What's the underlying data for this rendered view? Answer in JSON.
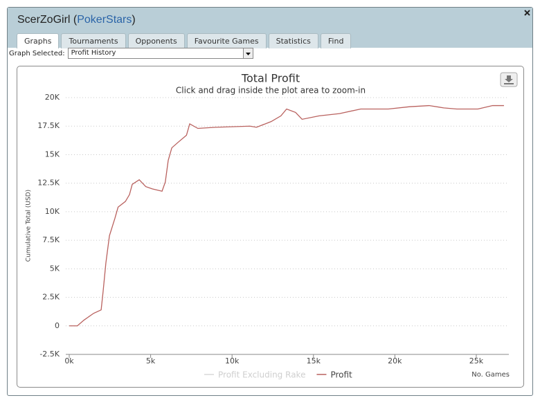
{
  "header": {
    "title_prefix": "ScerZoGirl (",
    "site": "PokerStars",
    "title_suffix": ")"
  },
  "tabs": [
    "Graphs",
    "Tournaments",
    "Opponents",
    "Favourite Games",
    "Statistics",
    "Find"
  ],
  "graph_select": {
    "label": "Graph Selected:",
    "value": "Profit History"
  },
  "chart_data": {
    "type": "line",
    "title": "Total Profit",
    "subtitle": "Click and drag inside the plot area to zoom-in",
    "y_label": "Cumulative Total (USD)",
    "x_label": "No. Games",
    "x": [
      0,
      500,
      900,
      1500,
      1960,
      2080,
      2250,
      2470,
      2800,
      3000,
      3450,
      3700,
      3870,
      4300,
      4700,
      5100,
      5700,
      5900,
      6080,
      6300,
      6700,
      7200,
      7400,
      7900,
      9000,
      11100,
      11500,
      12400,
      13000,
      13350,
      13900,
      14300,
      15350,
      16600,
      17900,
      19600,
      20900,
      22100,
      23000,
      23800,
      25100,
      26000,
      26700
    ],
    "series": [
      {
        "name": "Profit Excluding Rake",
        "color": "#d8d8d8",
        "visible": false
      },
      {
        "name": "Profit",
        "color": "#b9615e",
        "values": [
          0,
          0,
          500,
          1100,
          1400,
          3000,
          5500,
          7900,
          9400,
          10400,
          10900,
          11500,
          12400,
          12800,
          12200,
          12000,
          11800,
          12600,
          14500,
          15600,
          16100,
          16700,
          17700,
          17300,
          17400,
          17500,
          17400,
          17900,
          18400,
          19000,
          18700,
          18100,
          18400,
          18600,
          19000,
          19000,
          19200,
          19300,
          19100,
          19000,
          19000,
          19300,
          19300
        ]
      }
    ],
    "xlim": [
      0,
      27000
    ],
    "ylim": [
      -2500,
      20000
    ],
    "xticks": [
      {
        "value": 0,
        "label": "0k"
      },
      {
        "value": 5000,
        "label": "5k"
      },
      {
        "value": 10000,
        "label": "10k"
      },
      {
        "value": 15000,
        "label": "15k"
      },
      {
        "value": 20000,
        "label": "20k"
      },
      {
        "value": 25000,
        "label": "25k"
      }
    ],
    "yticks": [
      {
        "value": -2500,
        "label": "-2.5K"
      },
      0,
      {
        "value": 2500,
        "label": "2.5K"
      },
      {
        "value": 5000,
        "label": "5K"
      },
      {
        "value": 7500,
        "label": "7.5K"
      },
      {
        "value": 10000,
        "label": "10K"
      },
      {
        "value": 12500,
        "label": "12.5K"
      },
      {
        "value": 15000,
        "label": "15K"
      },
      {
        "value": 17500,
        "label": "17.5K"
      },
      {
        "value": 20000,
        "label": "20K"
      }
    ],
    "grid": true
  }
}
